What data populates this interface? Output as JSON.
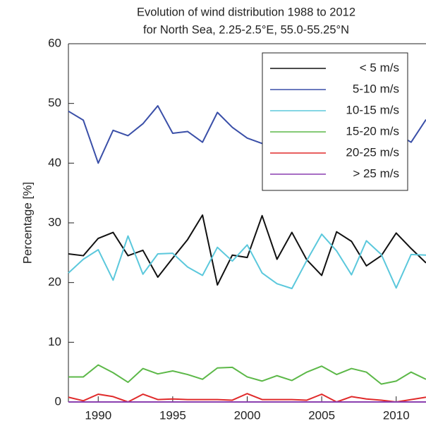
{
  "chart_data": {
    "type": "line",
    "title": "Evolution of wind distribution 1988 to 2012",
    "subtitle": "for North Sea, 2.25-2.5°E, 55.0-55.25°N",
    "y_label": "Percentage [%]",
    "x": [
      1988,
      1989,
      1990,
      1991,
      1992,
      1993,
      1994,
      1995,
      1996,
      1997,
      1998,
      1999,
      2000,
      2001,
      2002,
      2003,
      2004,
      2005,
      2006,
      2007,
      2008,
      2009,
      2010,
      2011,
      2012
    ],
    "xlim": [
      1988,
      2012
    ],
    "xticks": [
      1990,
      1995,
      2000,
      2005,
      2010
    ],
    "ylim": [
      0,
      60
    ],
    "yticks": [
      0,
      10,
      20,
      30,
      40,
      50,
      60
    ],
    "legend": "upper right",
    "series": [
      {
        "name": "< 5 m/s",
        "color": "#111111",
        "values": [
          24.8,
          24.5,
          27.4,
          28.4,
          24.5,
          25.4,
          20.9,
          24.1,
          27.2,
          31.3,
          19.6,
          24.6,
          24.2,
          31.2,
          23.9,
          28.4,
          23.8,
          21.2,
          28.5,
          26.9,
          22.8,
          24.5,
          28.3,
          25.7,
          23.3
        ]
      },
      {
        "name": "5-10 m/s",
        "color": "#3a4fa8",
        "values": [
          48.7,
          47.2,
          40.0,
          45.5,
          44.6,
          46.6,
          49.6,
          45.0,
          45.3,
          43.5,
          48.5,
          46.0,
          44.2,
          43.3,
          45.0,
          44.0,
          46.0,
          45.0,
          44.0,
          45.0,
          46.0,
          44.0,
          45.0,
          43.5,
          47.3
        ]
      },
      {
        "name": "10-15 m/s",
        "color": "#5bc8dc",
        "values": [
          21.6,
          23.9,
          25.5,
          20.4,
          27.8,
          21.4,
          24.8,
          24.9,
          22.6,
          21.2,
          25.9,
          23.6,
          26.3,
          21.6,
          19.8,
          19.0,
          23.7,
          28.1,
          25.3,
          21.3,
          27.0,
          24.7,
          19.1,
          24.7,
          24.6
        ]
      },
      {
        "name": "15-20 m/s",
        "color": "#5cb848",
        "values": [
          4.2,
          4.2,
          6.2,
          4.9,
          3.3,
          5.6,
          4.7,
          5.2,
          4.6,
          3.8,
          5.7,
          5.8,
          4.2,
          3.5,
          4.4,
          3.6,
          5.0,
          6.0,
          4.6,
          5.6,
          5.0,
          3.0,
          3.5,
          5.0,
          3.8
        ]
      },
      {
        "name": "20-25 m/s",
        "color": "#e02a2a",
        "values": [
          0.8,
          0.2,
          1.3,
          0.9,
          0.0,
          1.3,
          0.4,
          0.5,
          0.4,
          0.4,
          0.4,
          0.3,
          1.4,
          0.4,
          0.4,
          0.4,
          0.3,
          1.3,
          0.0,
          0.9,
          0.5,
          0.3,
          0.0,
          0.4,
          0.8
        ]
      },
      {
        "name": "> 25 m/s",
        "color": "#8a3fb0",
        "values": [
          0,
          0,
          0,
          0,
          0,
          0,
          0,
          0,
          0,
          0,
          0,
          0,
          0,
          0,
          0,
          0,
          0,
          0,
          0,
          0,
          0,
          0,
          0,
          0,
          0
        ]
      }
    ]
  }
}
